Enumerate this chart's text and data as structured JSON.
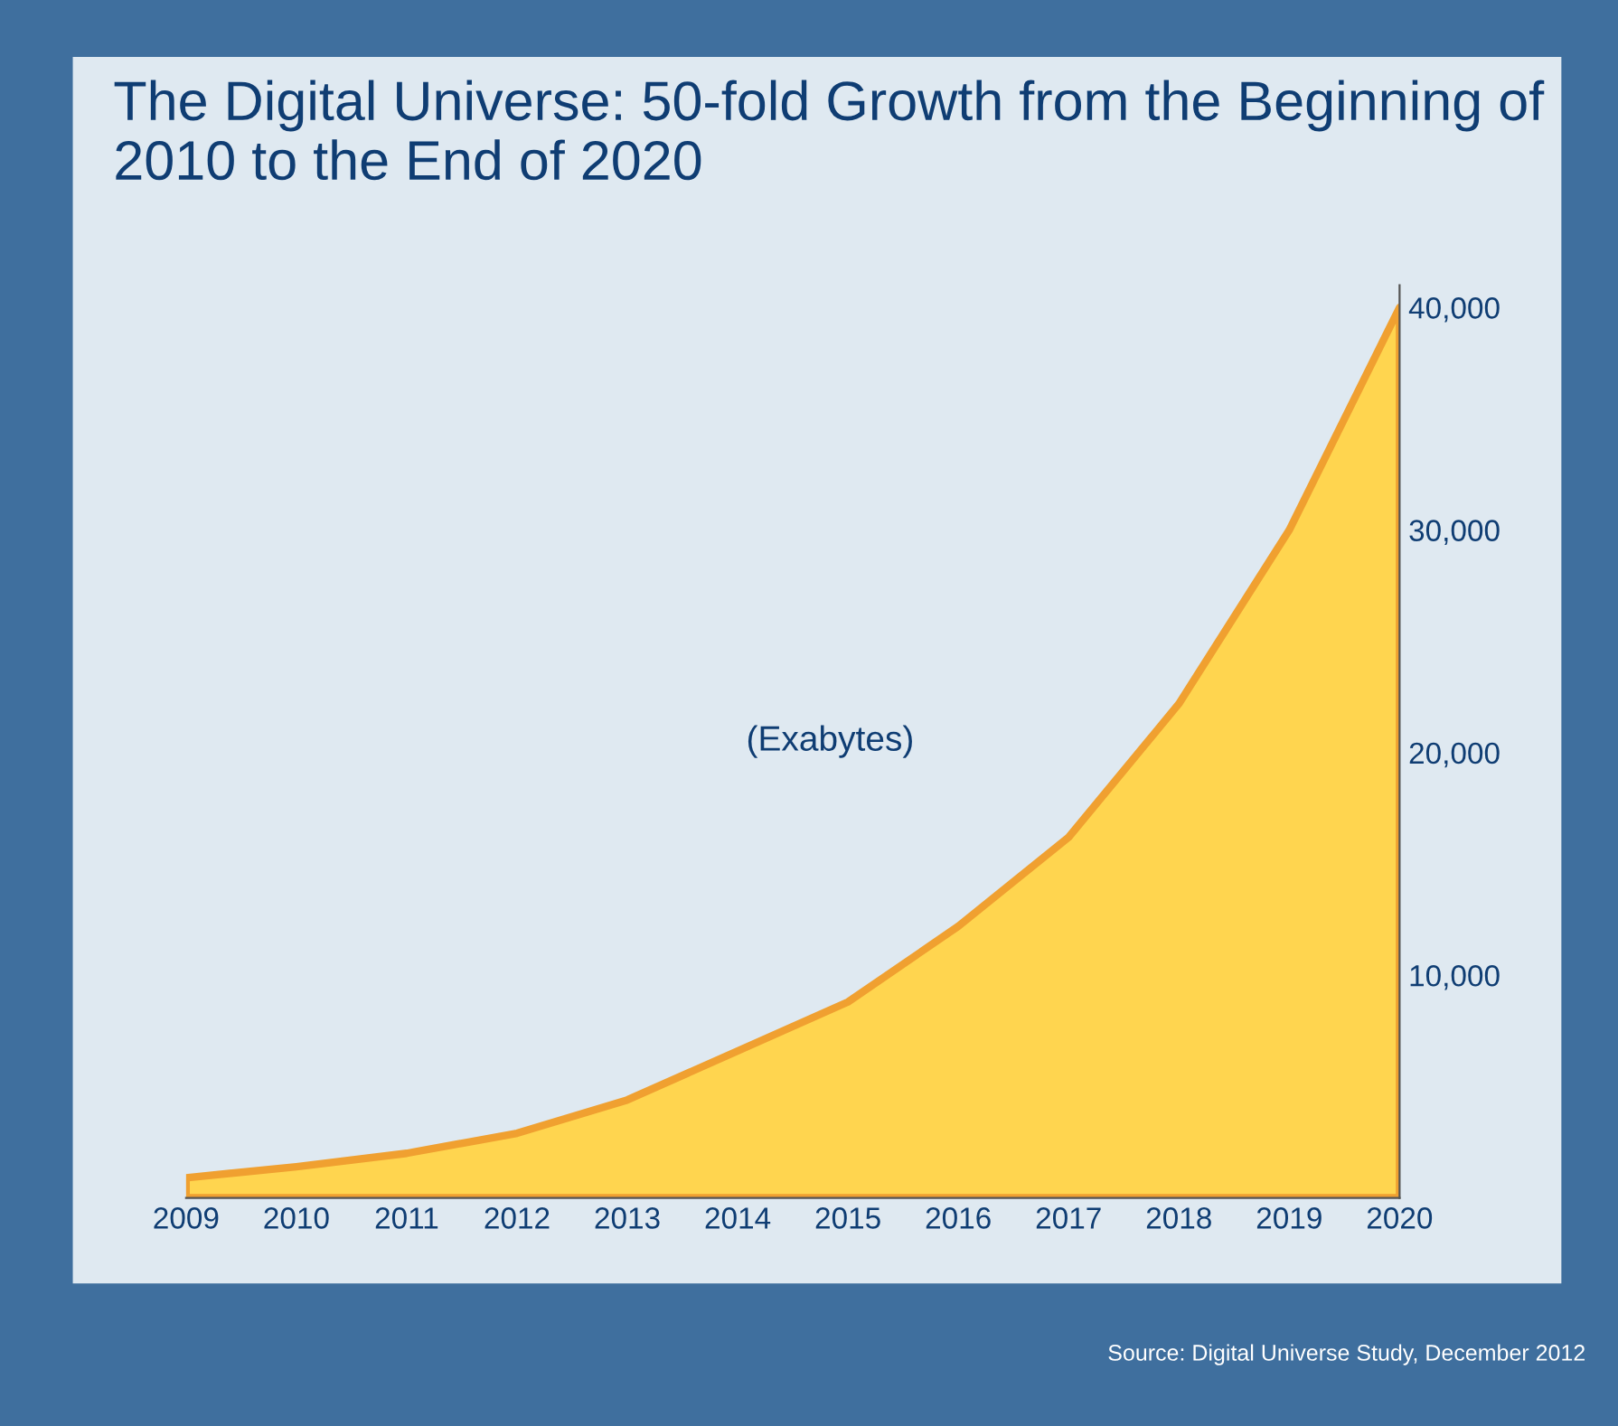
{
  "chart_data": {
    "type": "area",
    "title": "The Digital Universe: 50-fold Growth from the Beginning of 2010 to the End of 2020",
    "categories": [
      "2009",
      "2010",
      "2011",
      "2012",
      "2013",
      "2014",
      "2015",
      "2016",
      "2017",
      "2018",
      "2019",
      "2020"
    ],
    "series": [
      {
        "color": "#ffd54f",
        "values": [
          900,
          1400,
          2000,
          2900,
          4400,
          6600,
          8800,
          12200,
          16200,
          22200,
          30000,
          40000
        ]
      }
    ],
    "ylim": [
      0,
      41000
    ],
    "yticks": [
      {
        "value": 10000,
        "label": "10,000"
      },
      {
        "value": 20000,
        "label": "20,000"
      },
      {
        "value": 30000,
        "label": "30,000"
      },
      {
        "value": 40000,
        "label": "40,000"
      }
    ],
    "annotations": [
      "(Exabytes)",
      "Source: Digital Universe Study, December 2012"
    ],
    "grid": false,
    "legend": false
  }
}
